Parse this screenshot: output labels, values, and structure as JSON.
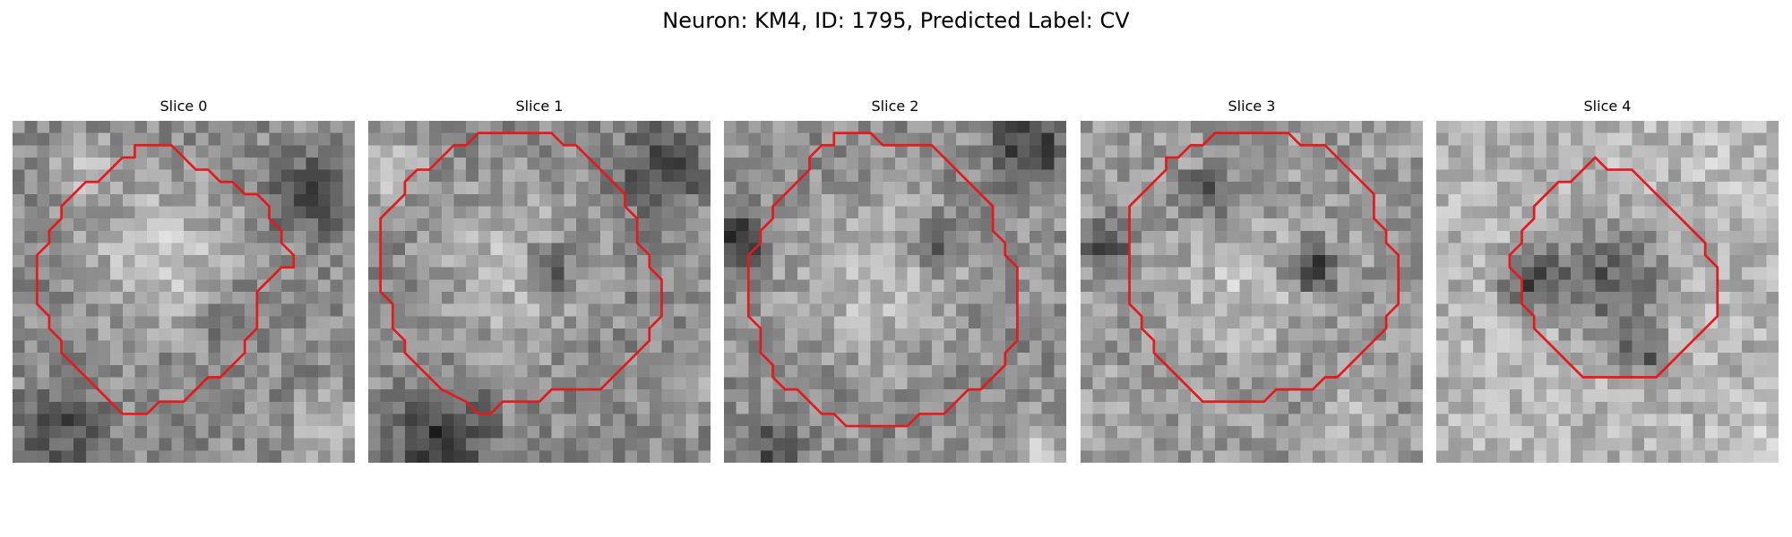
{
  "figure": {
    "title": "Neuron: KM4, ID: 1795, Predicted Label: CV"
  },
  "panels": [
    {
      "title": "Slice 0",
      "contour": [
        [
          10,
          2
        ],
        [
          13,
          2
        ],
        [
          15,
          4
        ],
        [
          16,
          4
        ],
        [
          17,
          5
        ],
        [
          18,
          5
        ],
        [
          19,
          6
        ],
        [
          20,
          6
        ],
        [
          21,
          7
        ],
        [
          21,
          8
        ],
        [
          22,
          9
        ],
        [
          22,
          10
        ],
        [
          23,
          11
        ],
        [
          23,
          12
        ],
        [
          22,
          12
        ],
        [
          21,
          13
        ],
        [
          20,
          14
        ],
        [
          20,
          17
        ],
        [
          19,
          18
        ],
        [
          19,
          19
        ],
        [
          18,
          20
        ],
        [
          17,
          21
        ],
        [
          16,
          21
        ],
        [
          15,
          22
        ],
        [
          14,
          23
        ],
        [
          12,
          23
        ],
        [
          11,
          24
        ],
        [
          9,
          24
        ],
        [
          8,
          23
        ],
        [
          7,
          22
        ],
        [
          6,
          21
        ],
        [
          5,
          20
        ],
        [
          4,
          19
        ],
        [
          4,
          18
        ],
        [
          3,
          17
        ],
        [
          3,
          16
        ],
        [
          2,
          15
        ],
        [
          2,
          11
        ],
        [
          3,
          10
        ],
        [
          3,
          9
        ],
        [
          4,
          8
        ],
        [
          4,
          7
        ],
        [
          5,
          6
        ],
        [
          6,
          5
        ],
        [
          7,
          5
        ],
        [
          8,
          4
        ],
        [
          9,
          3
        ],
        [
          10,
          3
        ]
      ],
      "background": "#8c8c8c",
      "blobs": [
        {
          "x": 12,
          "y": 11,
          "r": 9,
          "tone": 215
        },
        {
          "x": 4,
          "y": 25,
          "r": 5,
          "tone": 50
        },
        {
          "x": 24,
          "y": 6,
          "r": 5,
          "tone": 60
        },
        {
          "x": 18,
          "y": 16,
          "r": 4,
          "tone": 110
        },
        {
          "x": 6,
          "y": 4,
          "r": 4,
          "tone": 200
        },
        {
          "x": 26,
          "y": 25,
          "r": 4,
          "tone": 205
        }
      ]
    },
    {
      "title": "Slice 1",
      "contour": [
        [
          9,
          1
        ],
        [
          15,
          1
        ],
        [
          16,
          2
        ],
        [
          17,
          2
        ],
        [
          18,
          3
        ],
        [
          19,
          4
        ],
        [
          20,
          5
        ],
        [
          21,
          6
        ],
        [
          21,
          7
        ],
        [
          22,
          8
        ],
        [
          22,
          10
        ],
        [
          23,
          11
        ],
        [
          23,
          12
        ],
        [
          24,
          13
        ],
        [
          24,
          16
        ],
        [
          23,
          17
        ],
        [
          23,
          18
        ],
        [
          22,
          19
        ],
        [
          21,
          20
        ],
        [
          20,
          21
        ],
        [
          19,
          22
        ],
        [
          15,
          22
        ],
        [
          14,
          23
        ],
        [
          11,
          23
        ],
        [
          10,
          24
        ],
        [
          9,
          24
        ],
        [
          8,
          23
        ],
        [
          6,
          22
        ],
        [
          5,
          21
        ],
        [
          4,
          20
        ],
        [
          3,
          19
        ],
        [
          3,
          18
        ],
        [
          2,
          17
        ],
        [
          2,
          15
        ],
        [
          1,
          14
        ],
        [
          1,
          8
        ],
        [
          2,
          7
        ],
        [
          3,
          6
        ],
        [
          3,
          5
        ],
        [
          4,
          4
        ],
        [
          5,
          4
        ],
        [
          6,
          3
        ],
        [
          7,
          2
        ],
        [
          8,
          2
        ],
        [
          9,
          1
        ]
      ],
      "background": "#8a8a8a",
      "blobs": [
        {
          "x": 12,
          "y": 12,
          "r": 10,
          "tone": 200
        },
        {
          "x": 15,
          "y": 12,
          "r": 3,
          "tone": 60
        },
        {
          "x": 6,
          "y": 26,
          "r": 6,
          "tone": 30
        },
        {
          "x": 24,
          "y": 4,
          "r": 5,
          "tone": 50
        },
        {
          "x": 2,
          "y": 4,
          "r": 4,
          "tone": 215
        },
        {
          "x": 26,
          "y": 22,
          "r": 4,
          "tone": 200
        }
      ]
    },
    {
      "title": "Slice 2",
      "contour": [
        [
          9,
          1
        ],
        [
          12,
          1
        ],
        [
          13,
          2
        ],
        [
          17,
          2
        ],
        [
          18,
          3
        ],
        [
          19,
          4
        ],
        [
          20,
          5
        ],
        [
          21,
          6
        ],
        [
          22,
          7
        ],
        [
          22,
          9
        ],
        [
          23,
          10
        ],
        [
          23,
          11
        ],
        [
          24,
          12
        ],
        [
          24,
          18
        ],
        [
          23,
          19
        ],
        [
          23,
          20
        ],
        [
          22,
          21
        ],
        [
          21,
          22
        ],
        [
          20,
          22
        ],
        [
          19,
          23
        ],
        [
          18,
          24
        ],
        [
          16,
          24
        ],
        [
          15,
          25
        ],
        [
          10,
          25
        ],
        [
          9,
          24
        ],
        [
          8,
          24
        ],
        [
          7,
          23
        ],
        [
          6,
          22
        ],
        [
          5,
          22
        ],
        [
          4,
          21
        ],
        [
          4,
          20
        ],
        [
          3,
          19
        ],
        [
          3,
          17
        ],
        [
          2,
          16
        ],
        [
          2,
          11
        ],
        [
          3,
          10
        ],
        [
          3,
          9
        ],
        [
          4,
          8
        ],
        [
          4,
          7
        ],
        [
          5,
          6
        ],
        [
          6,
          5
        ],
        [
          7,
          4
        ],
        [
          7,
          3
        ],
        [
          8,
          2
        ],
        [
          9,
          2
        ]
      ],
      "background": "#8e8e8e",
      "blobs": [
        {
          "x": 12,
          "y": 13,
          "r": 10,
          "tone": 205
        },
        {
          "x": 17,
          "y": 10,
          "r": 3,
          "tone": 80
        },
        {
          "x": 1,
          "y": 10,
          "r": 4,
          "tone": 25
        },
        {
          "x": 25,
          "y": 2,
          "r": 5,
          "tone": 35
        },
        {
          "x": 4,
          "y": 27,
          "r": 4,
          "tone": 60
        },
        {
          "x": 26,
          "y": 27,
          "r": 4,
          "tone": 210
        }
      ]
    },
    {
      "title": "Slice 3",
      "contour": [
        [
          11,
          1
        ],
        [
          17,
          1
        ],
        [
          18,
          2
        ],
        [
          20,
          2
        ],
        [
          21,
          3
        ],
        [
          22,
          4
        ],
        [
          23,
          5
        ],
        [
          24,
          6
        ],
        [
          24,
          8
        ],
        [
          25,
          9
        ],
        [
          25,
          10
        ],
        [
          26,
          11
        ],
        [
          26,
          15
        ],
        [
          25,
          16
        ],
        [
          25,
          17
        ],
        [
          24,
          18
        ],
        [
          23,
          19
        ],
        [
          22,
          20
        ],
        [
          21,
          21
        ],
        [
          20,
          21
        ],
        [
          19,
          22
        ],
        [
          16,
          22
        ],
        [
          15,
          23
        ],
        [
          12,
          23
        ],
        [
          10,
          23
        ],
        [
          9,
          22
        ],
        [
          8,
          21
        ],
        [
          7,
          20
        ],
        [
          6,
          19
        ],
        [
          6,
          18
        ],
        [
          5,
          17
        ],
        [
          5,
          16
        ],
        [
          4,
          15
        ],
        [
          4,
          7
        ],
        [
          5,
          6
        ],
        [
          6,
          5
        ],
        [
          7,
          4
        ],
        [
          7,
          3
        ],
        [
          8,
          3
        ],
        [
          9,
          2
        ],
        [
          10,
          2
        ]
      ],
      "background": "#9a9a9a",
      "blobs": [
        {
          "x": 13,
          "y": 14,
          "r": 8,
          "tone": 205
        },
        {
          "x": 19,
          "y": 12,
          "r": 3,
          "tone": 30
        },
        {
          "x": 2,
          "y": 10,
          "r": 3,
          "tone": 40
        },
        {
          "x": 10,
          "y": 6,
          "r": 3,
          "tone": 70
        },
        {
          "x": 22,
          "y": 24,
          "r": 4,
          "tone": 200
        },
        {
          "x": 3,
          "y": 24,
          "r": 4,
          "tone": 190
        }
      ]
    },
    {
      "title": "Slice 4",
      "contour": [
        [
          12,
          4
        ],
        [
          13,
          3
        ],
        [
          14,
          4
        ],
        [
          16,
          4
        ],
        [
          17,
          5
        ],
        [
          18,
          6
        ],
        [
          19,
          7
        ],
        [
          20,
          8
        ],
        [
          21,
          9
        ],
        [
          22,
          10
        ],
        [
          22,
          11
        ],
        [
          23,
          12
        ],
        [
          23,
          16
        ],
        [
          22,
          17
        ],
        [
          21,
          18
        ],
        [
          20,
          19
        ],
        [
          19,
          20
        ],
        [
          18,
          21
        ],
        [
          12,
          21
        ],
        [
          11,
          20
        ],
        [
          10,
          19
        ],
        [
          9,
          18
        ],
        [
          8,
          17
        ],
        [
          8,
          16
        ],
        [
          7,
          15
        ],
        [
          7,
          13
        ],
        [
          6,
          12
        ],
        [
          6,
          11
        ],
        [
          7,
          10
        ],
        [
          7,
          9
        ],
        [
          8,
          8
        ],
        [
          8,
          7
        ],
        [
          9,
          6
        ],
        [
          10,
          5
        ],
        [
          11,
          5
        ]
      ],
      "background": "#b4b4b4",
      "blobs": [
        {
          "x": 14,
          "y": 13,
          "r": 7,
          "tone": 70
        },
        {
          "x": 8,
          "y": 13,
          "r": 4,
          "tone": 40
        },
        {
          "x": 17,
          "y": 19,
          "r": 3,
          "tone": 60
        },
        {
          "x": 24,
          "y": 4,
          "r": 5,
          "tone": 200
        },
        {
          "x": 3,
          "y": 25,
          "r": 4,
          "tone": 195
        },
        {
          "x": 26,
          "y": 26,
          "r": 4,
          "tone": 215
        }
      ]
    }
  ]
}
